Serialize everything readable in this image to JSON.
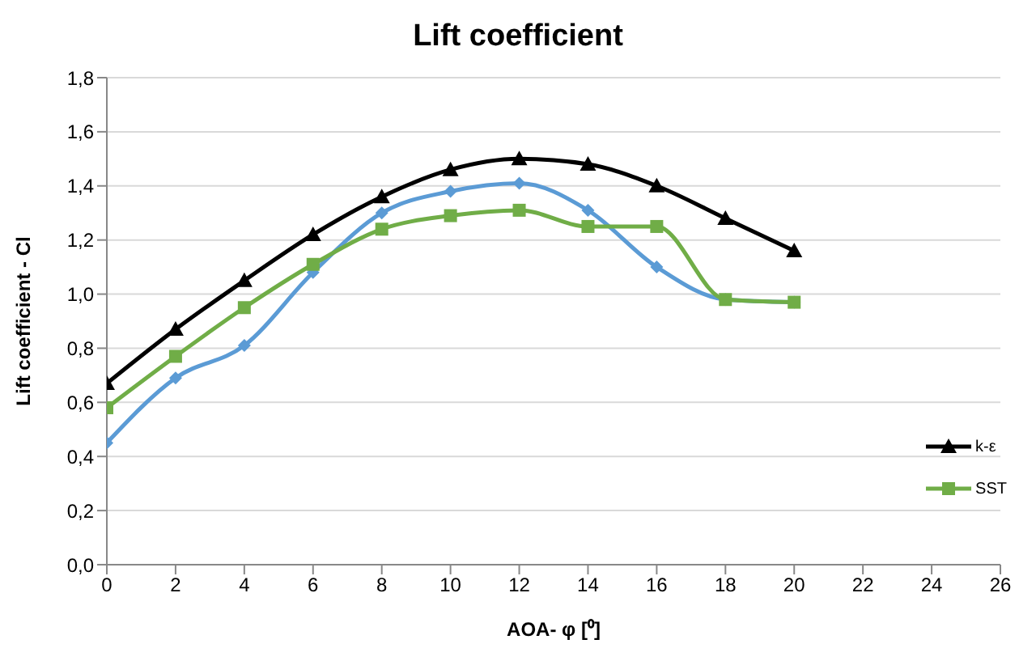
{
  "chart_data": {
    "type": "line",
    "title": "Lift coefficient",
    "xlabel": "AOA- φ [⁰]",
    "ylabel": "Lift coefficient - Cl",
    "x": [
      0,
      2,
      4,
      6,
      8,
      10,
      12,
      14,
      16,
      18,
      20
    ],
    "series": [
      {
        "color": "#5b9bd5",
        "marker": "diamond",
        "values": [
          0.45,
          0.69,
          0.81,
          1.08,
          1.3,
          1.38,
          1.41,
          1.31,
          1.1,
          0.98,
          0.97
        ]
      },
      {
        "name": "k-ε",
        "color": "#000000",
        "marker": "triangle",
        "values": [
          0.67,
          0.87,
          1.05,
          1.22,
          1.36,
          1.46,
          1.5,
          1.48,
          1.4,
          1.28,
          1.16
        ]
      },
      {
        "name": "SST",
        "color": "#70ad47",
        "marker": "square",
        "values": [
          0.58,
          0.77,
          0.95,
          1.11,
          1.24,
          1.29,
          1.31,
          1.25,
          1.25,
          0.98,
          0.97
        ]
      }
    ],
    "xlim": [
      0,
      26
    ],
    "xticks": [
      0,
      2,
      4,
      6,
      8,
      10,
      12,
      14,
      16,
      18,
      20,
      22,
      24,
      26
    ],
    "ylim": [
      0,
      1.8
    ],
    "yticks": [
      {
        "value": 0,
        "label": "0,0"
      },
      {
        "value": 0.2,
        "label": "0,2"
      },
      {
        "value": 0.4,
        "label": "0,4"
      },
      {
        "value": 0.6,
        "label": "0,6"
      },
      {
        "value": 0.8,
        "label": "0,8"
      },
      {
        "value": 1,
        "label": "1,0"
      },
      {
        "value": 1.2,
        "label": "1,2"
      },
      {
        "value": 1.4,
        "label": "1,4"
      },
      {
        "value": 1.6,
        "label": "1,6"
      },
      {
        "value": 1.8,
        "label": "1,8"
      }
    ],
    "grid": "y",
    "legend": "right",
    "line_style": "solid"
  }
}
